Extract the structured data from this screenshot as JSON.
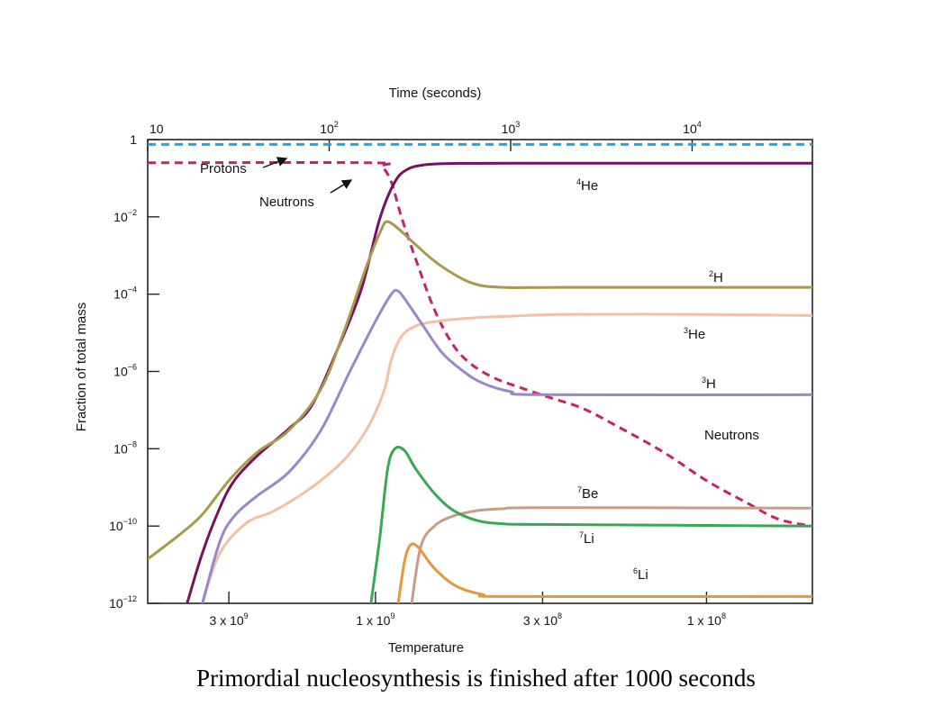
{
  "caption": "Primordial nucleosynthesis is finished after 1000 seconds",
  "chart_data": {
    "type": "line",
    "title": "",
    "top_axis": {
      "label": "Time (seconds)",
      "scale": "log",
      "range": [
        10,
        46000
      ],
      "ticks": [
        {
          "value": 10,
          "base": "10",
          "exp": ""
        },
        {
          "value": 100,
          "base": "10",
          "exp": "2"
        },
        {
          "value": 1000,
          "base": "10",
          "exp": "3"
        },
        {
          "value": 10000,
          "base": "10",
          "exp": "4"
        }
      ]
    },
    "bottom_axis": {
      "label": "Temperature",
      "note": "Temperature in K",
      "ticks": [
        {
          "time": 28,
          "base": "3 x 10",
          "exp": "9"
        },
        {
          "time": 180,
          "base": "1 x 10",
          "exp": "9"
        },
        {
          "time": 1500,
          "base": "3 x 10",
          "exp": "8"
        },
        {
          "time": 12000,
          "base": "1 x 10",
          "exp": "8"
        }
      ]
    },
    "y_axis": {
      "label": "Fraction of total mass",
      "scale": "log",
      "range": [
        1e-12,
        1
      ],
      "ticks": [
        {
          "value": 1,
          "base": "1",
          "exp": ""
        },
        {
          "value": 0.01,
          "base": "10",
          "exp": "−2"
        },
        {
          "value": 0.0001,
          "base": "10",
          "exp": "−4"
        },
        {
          "value": 1e-06,
          "base": "10",
          "exp": "−6"
        },
        {
          "value": 1e-08,
          "base": "10",
          "exp": "−8"
        },
        {
          "value": 1e-10,
          "base": "10",
          "exp": "−10"
        },
        {
          "value": 1e-12,
          "base": "10",
          "exp": "−12"
        }
      ]
    },
    "series": [
      {
        "name": "Protons",
        "color": "#1aa7e0",
        "dash": true,
        "points": [
          [
            10,
            0.75
          ],
          [
            46000,
            0.75
          ]
        ]
      },
      {
        "name": "Neutrons",
        "color": "#c4226a",
        "dash": true,
        "points": [
          [
            10,
            0.25
          ],
          [
            170,
            0.25
          ],
          [
            195,
            0.2
          ],
          [
            220,
            0.08
          ],
          [
            250,
            0.01
          ],
          [
            300,
            0.0008
          ],
          [
            380,
            4e-05
          ],
          [
            480,
            5e-06
          ],
          [
            600,
            1.6e-06
          ],
          [
            800,
            7e-07
          ],
          [
            1100,
            4e-07
          ],
          [
            1600,
            2.2e-07
          ],
          [
            2500,
            1.1e-07
          ],
          [
            4000,
            3.5e-08
          ],
          [
            7000,
            8e-09
          ],
          [
            12000,
            1.5e-09
          ],
          [
            20000,
            4e-10
          ],
          [
            30000,
            1.5e-10
          ],
          [
            46000,
            1e-10
          ]
        ]
      },
      {
        "name": "4He",
        "color": "#7a0f60",
        "dash": false,
        "points": [
          [
            16.5,
            1e-12
          ],
          [
            20,
            2e-11
          ],
          [
            25,
            3e-10
          ],
          [
            30,
            1.5e-09
          ],
          [
            40,
            6.5e-09
          ],
          [
            60,
            3.3e-08
          ],
          [
            80,
            1.3e-07
          ],
          [
            110,
            3.3e-06
          ],
          [
            150,
            0.00013
          ],
          [
            190,
            0.009
          ],
          [
            230,
            0.08
          ],
          [
            270,
            0.17
          ],
          [
            330,
            0.22
          ],
          [
            450,
            0.24
          ],
          [
            1000,
            0.245
          ],
          [
            46000,
            0.245
          ]
        ]
      },
      {
        "name": "2H",
        "color": "#a89a4c",
        "dash": false,
        "points": [
          [
            10,
            1.4e-11
          ],
          [
            15,
            6e-11
          ],
          [
            20,
            2e-10
          ],
          [
            28,
            1.5e-09
          ],
          [
            40,
            8e-09
          ],
          [
            60,
            3e-08
          ],
          [
            90,
            3.5e-07
          ],
          [
            120,
            1e-05
          ],
          [
            160,
            0.0005
          ],
          [
            195,
            0.005
          ],
          [
            210,
            0.0075
          ],
          [
            240,
            0.005
          ],
          [
            300,
            0.0019
          ],
          [
            400,
            0.0006
          ],
          [
            600,
            0.0002
          ],
          [
            900,
            0.00015
          ],
          [
            2000,
            0.00015
          ],
          [
            46000,
            0.00015
          ]
        ]
      },
      {
        "name": "3He",
        "color": "#f5bfa3",
        "dash": false,
        "points": [
          [
            20,
            1e-12
          ],
          [
            25,
            2e-11
          ],
          [
            35,
            1.2e-10
          ],
          [
            50,
            2.5e-10
          ],
          [
            80,
            1e-09
          ],
          [
            120,
            5e-09
          ],
          [
            160,
            3e-08
          ],
          [
            200,
            3e-07
          ],
          [
            220,
            2e-06
          ],
          [
            250,
            8e-06
          ],
          [
            300,
            1.5e-05
          ],
          [
            400,
            2e-05
          ],
          [
            600,
            2.4e-05
          ],
          [
            1000,
            2.7e-05
          ],
          [
            2000,
            3e-05
          ],
          [
            10000,
            3e-05
          ],
          [
            46000,
            2.8e-05
          ]
        ]
      },
      {
        "name": "3H",
        "color": "#9987c8",
        "dash": false,
        "points": [
          [
            20,
            1e-12
          ],
          [
            25,
            4e-11
          ],
          [
            30,
            1.8e-10
          ],
          [
            40,
            6e-10
          ],
          [
            60,
            2.5e-09
          ],
          [
            90,
            3e-08
          ],
          [
            130,
            1e-06
          ],
          [
            180,
            2e-05
          ],
          [
            220,
            0.0001
          ],
          [
            240,
            0.00012
          ],
          [
            270,
            6e-05
          ],
          [
            330,
            1.5e-05
          ],
          [
            420,
            3e-06
          ],
          [
            550,
            1e-06
          ],
          [
            700,
            5e-07
          ],
          [
            1000,
            3e-07
          ],
          [
            1500,
            2.5e-07
          ],
          [
            46000,
            2.5e-07
          ]
        ]
      },
      {
        "name": "7Be",
        "color": "#c99b86",
        "dash": false,
        "points": [
          [
            285,
            1e-12
          ],
          [
            320,
            3e-11
          ],
          [
            380,
            1e-10
          ],
          [
            480,
            1.8e-10
          ],
          [
            650,
            2.5e-10
          ],
          [
            900,
            2.8e-10
          ],
          [
            1500,
            3e-10
          ],
          [
            46000,
            2.9e-10
          ]
        ]
      },
      {
        "name": "7Li",
        "color": "#38a852",
        "dash": false,
        "points": [
          [
            170,
            1e-12
          ],
          [
            190,
            5e-11
          ],
          [
            210,
            3e-09
          ],
          [
            230,
            1e-08
          ],
          [
            260,
            9e-09
          ],
          [
            300,
            3e-09
          ],
          [
            380,
            7e-10
          ],
          [
            480,
            2.6e-10
          ],
          [
            650,
            1.4e-10
          ],
          [
            900,
            1.15e-10
          ],
          [
            1500,
            1.1e-10
          ],
          [
            46000,
            1e-10
          ]
        ]
      },
      {
        "name": "6Li",
        "color": "#e8963b",
        "dash": false,
        "points": [
          [
            240,
            1e-12
          ],
          [
            260,
            1.2e-11
          ],
          [
            280,
            3.2e-11
          ],
          [
            310,
            2.8e-11
          ],
          [
            380,
            8e-12
          ],
          [
            500,
            2.8e-12
          ],
          [
            700,
            1.7e-12
          ],
          [
            1000,
            1.5e-12
          ],
          [
            46000,
            1.5e-12
          ]
        ]
      }
    ],
    "annotations": [
      {
        "id": "protons",
        "base": "Protons",
        "sup": ""
      },
      {
        "id": "neutrons-top",
        "base": "Neutrons",
        "sup": ""
      },
      {
        "id": "he4",
        "base": "He",
        "sup": "4"
      },
      {
        "id": "h2",
        "base": "H",
        "sup": "2"
      },
      {
        "id": "he3",
        "base": "He",
        "sup": "3"
      },
      {
        "id": "h3",
        "base": "H",
        "sup": "3"
      },
      {
        "id": "neutrons-right",
        "base": "Neutrons",
        "sup": ""
      },
      {
        "id": "be7",
        "base": "Be",
        "sup": "7"
      },
      {
        "id": "li7",
        "base": "Li",
        "sup": "7"
      },
      {
        "id": "li6",
        "base": "Li",
        "sup": "6"
      }
    ]
  }
}
